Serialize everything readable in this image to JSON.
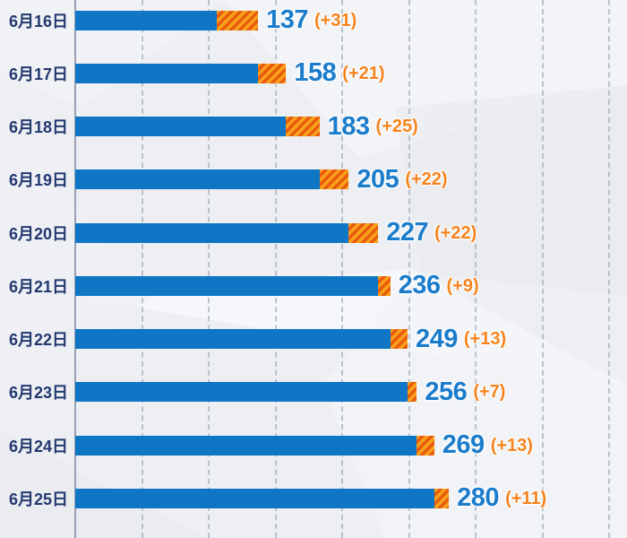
{
  "chart_data": {
    "type": "bar",
    "orientation": "horizontal",
    "title": "",
    "categories": [
      "6月16日",
      "6月17日",
      "6月18日",
      "6月19日",
      "6月20日",
      "6月21日",
      "6月22日",
      "6月23日",
      "6月24日",
      "6月25日"
    ],
    "series": [
      {
        "name": "cumulative-total",
        "color": "#0E76C5",
        "values": [
          137,
          158,
          183,
          205,
          227,
          236,
          249,
          256,
          269,
          280
        ]
      },
      {
        "name": "daily-increase",
        "color": "#F9A11B",
        "hatch_color": "#E95B0C",
        "hatch": "diagonal-stripes",
        "values": [
          31,
          21,
          25,
          22,
          22,
          9,
          13,
          7,
          13,
          11
        ]
      }
    ],
    "value_labels": [
      "137",
      "158",
      "183",
      "205",
      "227",
      "236",
      "249",
      "256",
      "269",
      "280"
    ],
    "delta_labels": [
      "(+31)",
      "(+21)",
      "(+25)",
      "(+22)",
      "(+22)",
      "(+9)",
      "(+13)",
      "(+7)",
      "(+13)",
      "(+11)"
    ],
    "axis": {
      "x_min": 0,
      "x_gridline_step": 50,
      "x_gridlines": [
        50,
        100,
        150,
        200,
        250,
        300,
        350,
        400
      ],
      "grid_style": "dashed",
      "tick_labels_visible": false,
      "legend_visible": false
    }
  },
  "colors": {
    "background": "#EDEFF3",
    "bar_blue": "#0E76C5",
    "hatch_light": "#F9A11B",
    "hatch_dark": "#E95B0C",
    "value_text": "#1B7CCB",
    "delta_text": "#F5831D",
    "date_text": "#22386F",
    "axis_line": "#98A0B4",
    "gridline": "#9FA7BA"
  }
}
